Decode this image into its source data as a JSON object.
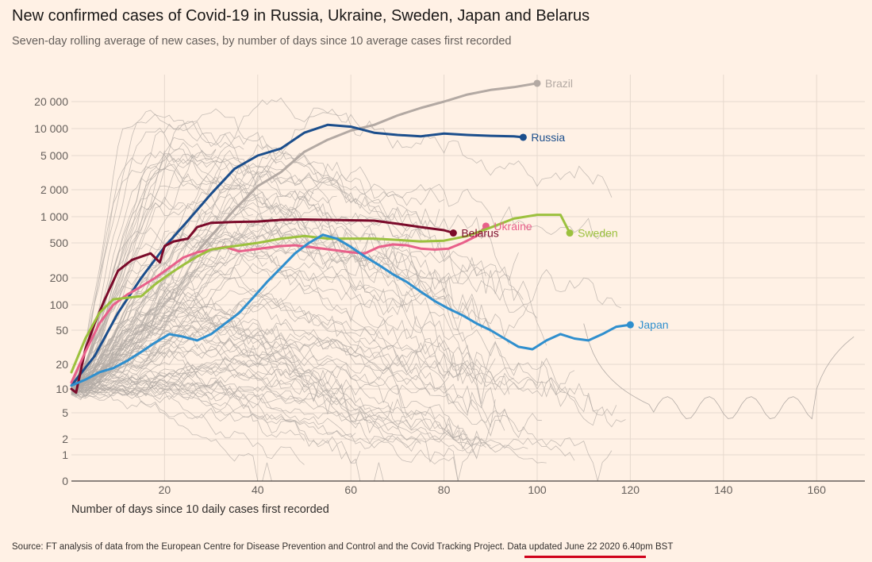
{
  "header": {
    "title": "New confirmed cases of Covid-19 in Russia, Ukraine, Sweden, Japan and Belarus",
    "subtitle": "Seven-day rolling average of new cases, by number of days since 10 average cases first recorded"
  },
  "footer": {
    "source_prefix": "Source: FT analysis of data from the European Centre for Disease Prevention and Control and the Covid Tracking Project. ",
    "updated": "Data updated June 22 2020 6.40pm BST"
  },
  "colors": {
    "background": "#fff1e5",
    "grid": "#e6d9ce",
    "background_lines": "#b3aba6",
    "brazil": "#b3a9a3",
    "russia": "#1b4e8c",
    "belarus": "#7b0a2a",
    "ukraine": "#e8608a",
    "sweden": "#9cc13e",
    "japan": "#2f8fce",
    "highlight": "#d0021b"
  },
  "chart_data": {
    "type": "line",
    "title": "",
    "xlabel": "Number of days since 10 daily cases first recorded",
    "ylabel": "",
    "xlim": [
      0,
      172
    ],
    "ylim": [
      0,
      40000
    ],
    "y_scale": "log (zero at bottom)",
    "grid": true,
    "legend": "inline labels at line ends",
    "x_ticks": [
      20,
      40,
      60,
      80,
      100,
      120,
      140,
      160
    ],
    "x_tick_labels": [
      "20",
      "40",
      "60",
      "80",
      "100",
      "120",
      "140",
      "160"
    ],
    "y_ticks": [
      0,
      1,
      2,
      5,
      10,
      20,
      50,
      100,
      200,
      500,
      1000,
      2000,
      5000,
      10000,
      20000
    ],
    "y_tick_labels": [
      "0",
      "1",
      "2",
      "5",
      "10",
      "20",
      "50",
      "100",
      "200",
      "500",
      "1 000",
      "2 000",
      "5 000",
      "10 000",
      "20 000"
    ],
    "series": [
      {
        "name": "Brazil",
        "key": "brazil",
        "width": 3,
        "x": [
          25,
          30,
          35,
          40,
          45,
          50,
          55,
          60,
          65,
          70,
          75,
          80,
          85,
          90,
          95,
          100
        ],
        "y": [
          300,
          600,
          1200,
          2200,
          3200,
          5500,
          7500,
          9500,
          11000,
          14000,
          17000,
          20000,
          24000,
          27000,
          29000,
          32000
        ]
      },
      {
        "name": "Russia",
        "key": "russia",
        "width": 3,
        "x": [
          0,
          5,
          10,
          15,
          20,
          25,
          30,
          35,
          40,
          45,
          50,
          55,
          60,
          65,
          70,
          75,
          80,
          85,
          90,
          95,
          97
        ],
        "y": [
          11,
          25,
          80,
          200,
          450,
          900,
          1800,
          3500,
          5000,
          6000,
          9000,
          11000,
          10500,
          9000,
          8500,
          8200,
          8800,
          8500,
          8300,
          8200,
          8000
        ]
      },
      {
        "name": "Belarus",
        "key": "belarus",
        "width": 3,
        "x": [
          0,
          1,
          3,
          5,
          7,
          10,
          13,
          17,
          19,
          20,
          22,
          25,
          27,
          30,
          35,
          40,
          45,
          50,
          55,
          60,
          65,
          70,
          75,
          80,
          82
        ],
        "y": [
          10,
          9,
          30,
          60,
          110,
          240,
          320,
          380,
          300,
          460,
          520,
          560,
          760,
          850,
          870,
          880,
          920,
          930,
          920,
          910,
          900,
          830,
          760,
          700,
          650
        ]
      },
      {
        "name": "Ukraine",
        "key": "ukraine",
        "width": 3,
        "x": [
          0,
          3,
          6,
          9,
          12,
          15,
          18,
          21,
          24,
          27,
          30,
          33,
          36,
          39,
          42,
          45,
          48,
          51,
          54,
          57,
          60,
          63,
          66,
          69,
          72,
          75,
          78,
          81,
          84,
          87,
          89
        ],
        "y": [
          12,
          28,
          60,
          100,
          130,
          160,
          200,
          260,
          340,
          390,
          420,
          450,
          400,
          420,
          440,
          460,
          470,
          450,
          430,
          410,
          390,
          380,
          450,
          480,
          470,
          430,
          420,
          430,
          500,
          600,
          780
        ]
      },
      {
        "name": "Sweden",
        "key": "sweden",
        "width": 3,
        "x": [
          0,
          3,
          6,
          9,
          12,
          15,
          18,
          21,
          24,
          27,
          30,
          35,
          40,
          45,
          50,
          55,
          60,
          65,
          70,
          75,
          80,
          85,
          90,
          95,
          100,
          105,
          107
        ],
        "y": [
          16,
          40,
          80,
          115,
          120,
          125,
          170,
          220,
          280,
          350,
          420,
          460,
          500,
          560,
          600,
          560,
          560,
          560,
          540,
          520,
          530,
          600,
          750,
          950,
          1050,
          1050,
          650
        ]
      },
      {
        "name": "Japan",
        "key": "japan",
        "width": 3,
        "x": [
          0,
          3,
          6,
          9,
          12,
          15,
          18,
          21,
          24,
          27,
          30,
          33,
          36,
          39,
          42,
          45,
          48,
          51,
          54,
          57,
          60,
          63,
          66,
          69,
          72,
          75,
          78,
          81,
          84,
          87,
          90,
          93,
          96,
          99,
          102,
          105,
          108,
          111,
          114,
          117,
          120
        ],
        "y": [
          11,
          13,
          16,
          18,
          22,
          28,
          36,
          45,
          42,
          38,
          45,
          60,
          80,
          120,
          180,
          260,
          380,
          500,
          620,
          560,
          450,
          350,
          280,
          220,
          180,
          140,
          110,
          90,
          75,
          60,
          50,
          40,
          32,
          30,
          38,
          45,
          40,
          38,
          45,
          55,
          58
        ]
      }
    ],
    "labels": [
      {
        "text": "Brazil",
        "series": "Brazil"
      },
      {
        "text": "Russia",
        "series": "Russia"
      },
      {
        "text": "Belarus",
        "series": "Belarus"
      },
      {
        "text": "Ukraine",
        "series": "Ukraine"
      },
      {
        "text": "Sweden",
        "series": "Sweden"
      },
      {
        "text": "Japan",
        "series": "Japan"
      }
    ]
  }
}
